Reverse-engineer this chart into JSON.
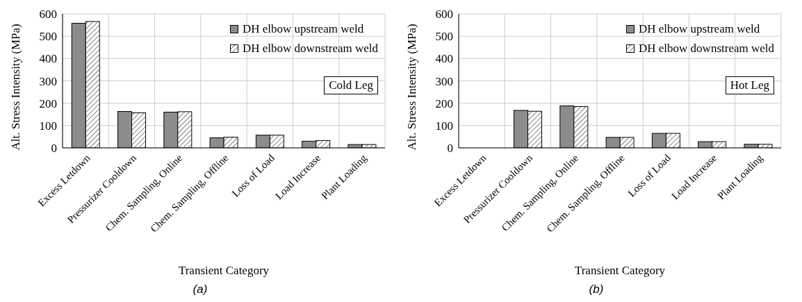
{
  "chart_data": [
    {
      "type": "bar",
      "xlabel": "Transient Category",
      "ylabel": "Alt. Stress Intensity (MPa)",
      "categories": [
        "Excess Letdown",
        "Pressurizer Cooldown",
        "Chem. Sampling, Online",
        "Chem. Sampling, Offline",
        "Loss of Load",
        "Load Increase",
        "Plant Loading"
      ],
      "series": [
        {
          "name": "DH elbow upstream weld",
          "color": "#8c8c8c",
          "values": [
            558,
            163,
            160,
            45,
            57,
            30,
            15
          ]
        },
        {
          "name": "DH elbow downstream weld",
          "color": "#ffffff",
          "values": [
            566,
            157,
            162,
            48,
            57,
            33,
            15
          ]
        }
      ],
      "ylim": [
        0,
        600
      ],
      "yticks": [
        0,
        100,
        200,
        300,
        400,
        500,
        600
      ],
      "grid": true,
      "legend": "top right",
      "annotations": [
        "Cold Leg",
        "(a)"
      ]
    },
    {
      "type": "bar",
      "xlabel": "Transient Category",
      "ylabel": "Alt. Stress Intensity (MPa)",
      "categories": [
        "Excess Letdown",
        "Pressurizer Cooldown",
        "Chem. Sampling, Online",
        "Chem. Sampling, Offline",
        "Loss of Load",
        "Load Increase",
        "Plant Loading"
      ],
      "series": [
        {
          "name": "DH elbow upstream weld",
          "color": "#8c8c8c",
          "values": [
            null,
            168,
            188,
            47,
            65,
            28,
            16
          ]
        },
        {
          "name": "DH elbow downstream weld",
          "color": "#ffffff",
          "values": [
            null,
            164,
            185,
            47,
            65,
            28,
            16
          ]
        }
      ],
      "ylim": [
        0,
        600
      ],
      "yticks": [
        0,
        100,
        200,
        300,
        400,
        500,
        600
      ],
      "grid": true,
      "legend": "top right",
      "annotations": [
        "Hot Leg",
        "(b)"
      ]
    }
  ]
}
